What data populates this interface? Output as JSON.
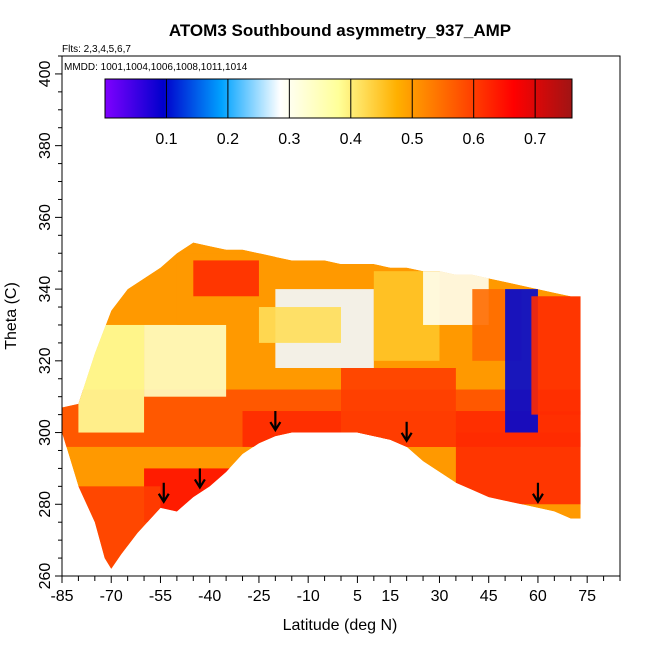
{
  "chart_data": {
    "type": "heatmap",
    "title": "ATOM3 Southbound asymmetry_937_AMP",
    "flights_note": "Flts: 2,3,4,5,6,7",
    "dates_note": "MMDD: 1001,1004,1006,1008,1011,1014",
    "xlabel": "Latitude (deg N)",
    "ylabel": "Theta (C)",
    "xlim": [
      -85,
      85
    ],
    "ylim": [
      260,
      405
    ],
    "x_ticks": [
      -85,
      -70,
      -55,
      -40,
      -25,
      -10,
      5,
      15,
      30,
      45,
      60,
      75
    ],
    "y_ticks": [
      260,
      280,
      300,
      320,
      340,
      360,
      380,
      400
    ],
    "grid": false,
    "colorbar": {
      "position": "top-inside",
      "range": [
        0.0,
        0.76
      ],
      "ticks": [
        0.1,
        0.2,
        0.3,
        0.4,
        0.5,
        0.6,
        0.7
      ],
      "stops": [
        "#7f00ff",
        "#0000cc",
        "#00a2ff",
        "#ffffff",
        "#ffff99",
        "#ffb000",
        "#ff5a00",
        "#ff0000",
        "#a01414"
      ]
    },
    "coverage_upper_boundary": [
      [
        -85,
        307
      ],
      [
        -80,
        308
      ],
      [
        -75,
        322
      ],
      [
        -70,
        334
      ],
      [
        -65,
        340
      ],
      [
        -60,
        343
      ],
      [
        -55,
        346
      ],
      [
        -50,
        350
      ],
      [
        -45,
        353
      ],
      [
        -40,
        352
      ],
      [
        -35,
        351
      ],
      [
        -30,
        351
      ],
      [
        -25,
        350
      ],
      [
        -20,
        349
      ],
      [
        -15,
        348
      ],
      [
        -10,
        348
      ],
      [
        -5,
        348
      ],
      [
        0,
        347
      ],
      [
        5,
        347
      ],
      [
        10,
        347
      ],
      [
        15,
        346
      ],
      [
        20,
        346
      ],
      [
        25,
        345
      ],
      [
        30,
        345
      ],
      [
        35,
        344
      ],
      [
        40,
        344
      ],
      [
        45,
        343
      ],
      [
        50,
        342
      ],
      [
        55,
        341
      ],
      [
        60,
        340
      ],
      [
        65,
        339
      ],
      [
        70,
        338
      ],
      [
        73,
        338
      ]
    ],
    "coverage_lower_boundary": [
      [
        -85,
        300
      ],
      [
        -80,
        285
      ],
      [
        -75,
        275
      ],
      [
        -72,
        265
      ],
      [
        -70,
        262
      ],
      [
        -67,
        266
      ],
      [
        -62,
        272
      ],
      [
        -58,
        276
      ],
      [
        -55,
        279
      ],
      [
        -50,
        278
      ],
      [
        -45,
        282
      ],
      [
        -40,
        285
      ],
      [
        -35,
        289
      ],
      [
        -30,
        294
      ],
      [
        -25,
        297
      ],
      [
        -20,
        299
      ],
      [
        -15,
        300
      ],
      [
        -10,
        300
      ],
      [
        -5,
        300
      ],
      [
        0,
        300
      ],
      [
        5,
        300
      ],
      [
        10,
        299
      ],
      [
        15,
        298
      ],
      [
        20,
        296
      ],
      [
        25,
        292
      ],
      [
        30,
        289
      ],
      [
        35,
        286
      ],
      [
        40,
        284
      ],
      [
        45,
        282
      ],
      [
        50,
        281
      ],
      [
        55,
        280
      ],
      [
        60,
        279
      ],
      [
        65,
        278
      ],
      [
        70,
        276
      ],
      [
        73,
        276
      ]
    ],
    "field_regions": [
      {
        "x": [
          -85,
          73
        ],
        "y": [
          296,
          312
        ],
        "value": 0.58
      },
      {
        "x": [
          -30,
          73
        ],
        "y": [
          296,
          306
        ],
        "value": 0.62
      },
      {
        "x": [
          -60,
          -25
        ],
        "y": [
          275,
          290
        ],
        "value": 0.65
      },
      {
        "x": [
          -85,
          -55
        ],
        "y": [
          262,
          285
        ],
        "value": 0.6
      },
      {
        "x": [
          -80,
          -60
        ],
        "y": [
          300,
          330
        ],
        "value": 0.38
      },
      {
        "x": [
          -60,
          -35
        ],
        "y": [
          310,
          330
        ],
        "value": 0.34
      },
      {
        "x": [
          -50,
          -20
        ],
        "y": [
          330,
          350
        ],
        "value": 0.5
      },
      {
        "x": [
          -45,
          -25
        ],
        "y": [
          338,
          348
        ],
        "value": 0.62
      },
      {
        "x": [
          -20,
          10
        ],
        "y": [
          318,
          340
        ],
        "value": 0.28
      },
      {
        "x": [
          -25,
          0
        ],
        "y": [
          325,
          335
        ],
        "value": 0.42
      },
      {
        "x": [
          10,
          30
        ],
        "y": [
          320,
          345
        ],
        "value": 0.45
      },
      {
        "x": [
          25,
          45
        ],
        "y": [
          330,
          345
        ],
        "value": 0.3
      },
      {
        "x": [
          40,
          55
        ],
        "y": [
          320,
          340
        ],
        "value": 0.55
      },
      {
        "x": [
          50,
          60
        ],
        "y": [
          300,
          340
        ],
        "value": 0.1
      },
      {
        "x": [
          58,
          73
        ],
        "y": [
          305,
          338
        ],
        "value": 0.62
      },
      {
        "x": [
          35,
          73
        ],
        "y": [
          280,
          300
        ],
        "value": 0.62
      },
      {
        "x": [
          0,
          35
        ],
        "y": [
          296,
          318
        ],
        "value": 0.6
      }
    ],
    "arrow_markers": [
      [
        -54,
        286
      ],
      [
        -43,
        290
      ],
      [
        -20,
        306
      ],
      [
        20,
        303
      ],
      [
        60,
        286
      ]
    ]
  }
}
